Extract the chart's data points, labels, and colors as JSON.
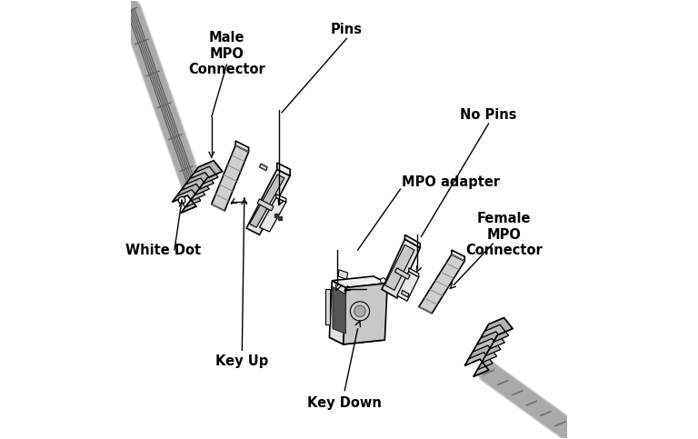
{
  "background_color": "#ffffff",
  "text_color": "#000000",
  "line_color": "#000000",
  "fill_light": "#f0f0f0",
  "fill_mid": "#d8d8d8",
  "fill_dark": "#b8b8b8",
  "fill_darker": "#888888",
  "labels": {
    "male_connector": "Male\nMPO\nConnector",
    "pins": "Pins",
    "no_pins": "No Pins",
    "mpo_adapter": "MPO adapter",
    "white_dot": "White Dot",
    "key_up": "Key Up",
    "key_down": "Key Down",
    "female_connector": "Female\nMPO\nConnector"
  },
  "figsize": [
    7.68,
    4.83
  ],
  "dpi": 100
}
